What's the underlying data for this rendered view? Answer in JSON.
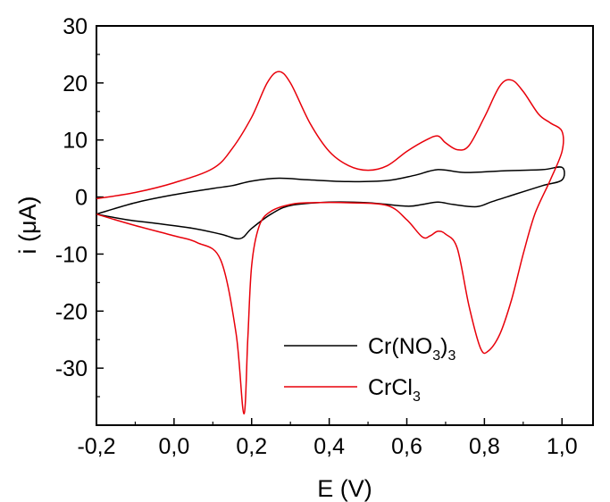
{
  "chart_data": {
    "type": "line",
    "xlabel": "E (V)",
    "ylabel_main": "i (",
    "ylabel_unit": "μA",
    "ylabel_close": ")",
    "xlim": [
      -0.2,
      1.08
    ],
    "ylim": [
      -40,
      30
    ],
    "x_ticks": [
      -0.2,
      0.0,
      0.2,
      0.4,
      0.6,
      0.8,
      1.0
    ],
    "x_tick_labels": [
      "-0,2",
      "0,0",
      "0,2",
      "0,4",
      "0,6",
      "0,8",
      "1,0"
    ],
    "y_ticks": [
      30,
      20,
      10,
      0,
      -10,
      -20,
      -30
    ],
    "y_tick_labels": [
      "30",
      "20",
      "10",
      "0",
      "-10",
      "-20",
      "-30"
    ],
    "grid": false,
    "legend_placement": "bottom-right",
    "series": [
      {
        "name_main": "Cr(NO",
        "name_sub1": "3",
        "name_close": ")",
        "name_sub2": "3",
        "color": "#000000",
        "x": [
          -0.2,
          -0.1,
          0.0,
          0.1,
          0.15,
          0.2,
          0.27,
          0.35,
          0.45,
          0.55,
          0.62,
          0.68,
          0.75,
          0.85,
          0.95,
          1.0,
          1.0,
          0.95,
          0.88,
          0.82,
          0.78,
          0.72,
          0.68,
          0.64,
          0.6,
          0.5,
          0.4,
          0.3,
          0.25,
          0.2,
          0.17,
          0.12,
          0.05,
          -0.05,
          -0.12,
          -0.2
        ],
        "y": [
          -3.0,
          -1.0,
          0.4,
          1.5,
          2.0,
          2.8,
          3.3,
          3.0,
          2.7,
          2.9,
          3.8,
          4.8,
          4.3,
          4.6,
          4.8,
          5.2,
          3.0,
          2.0,
          0.5,
          -0.8,
          -1.7,
          -1.3,
          -0.9,
          -1.3,
          -1.6,
          -1.0,
          -0.9,
          -1.5,
          -3.0,
          -5.5,
          -7.3,
          -6.5,
          -5.5,
          -4.6,
          -4.0,
          -3.0
        ]
      },
      {
        "name_main": "CrCl",
        "name_sub1": "3",
        "name_close": "",
        "name_sub2": "",
        "color": "#e8000a",
        "x": [
          -0.2,
          -0.1,
          0.0,
          0.1,
          0.15,
          0.2,
          0.24,
          0.27,
          0.3,
          0.35,
          0.4,
          0.45,
          0.5,
          0.55,
          0.6,
          0.65,
          0.68,
          0.7,
          0.73,
          0.76,
          0.8,
          0.84,
          0.87,
          0.9,
          0.94,
          0.97,
          1.0,
          1.0,
          0.97,
          0.93,
          0.9,
          0.87,
          0.84,
          0.81,
          0.79,
          0.76,
          0.73,
          0.7,
          0.68,
          0.66,
          0.64,
          0.6,
          0.55,
          0.45,
          0.35,
          0.3,
          0.25,
          0.22,
          0.2,
          0.19,
          0.18,
          0.16,
          0.12,
          0.06,
          0.0,
          -0.1,
          -0.2
        ],
        "y": [
          -0.3,
          0.8,
          2.5,
          5.0,
          8.5,
          14.0,
          20.0,
          22.0,
          20.0,
          13.0,
          8.0,
          5.5,
          4.7,
          5.5,
          8.0,
          10.0,
          10.7,
          9.5,
          8.3,
          9.0,
          14.0,
          19.5,
          20.5,
          18.5,
          14.5,
          13.0,
          11.5,
          8.0,
          3.0,
          -3.0,
          -10.0,
          -18.0,
          -24.0,
          -27.0,
          -26.5,
          -19.0,
          -9.0,
          -6.5,
          -6.0,
          -6.8,
          -7.0,
          -4.0,
          -1.5,
          -1.0,
          -1.0,
          -1.3,
          -2.5,
          -5.0,
          -12.0,
          -25.0,
          -38.0,
          -24.0,
          -11.0,
          -8.0,
          -6.8,
          -5.0,
          -3.0
        ]
      }
    ]
  }
}
